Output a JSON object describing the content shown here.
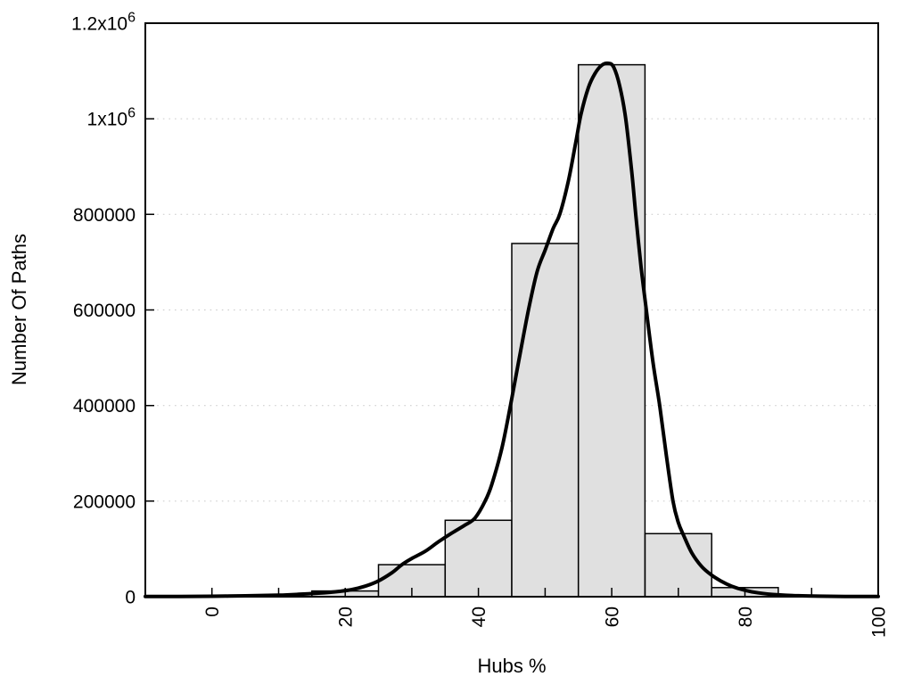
{
  "chart_data": {
    "type": "bar",
    "subtype": "histogram-with-fit-curve",
    "title": "",
    "xlabel": "Hubs %",
    "ylabel": "Number Of Paths",
    "xlim": [
      -10,
      100
    ],
    "ylim": [
      0,
      1200000
    ],
    "x_tick_step": 10,
    "x_tick_labels": [
      {
        "value": 0,
        "label": "0"
      },
      {
        "value": 20,
        "label": "20"
      },
      {
        "value": 40,
        "label": "40"
      },
      {
        "value": 60,
        "label": "60"
      },
      {
        "value": 80,
        "label": "80"
      },
      {
        "value": 100,
        "label": "100"
      }
    ],
    "y_ticks": [
      {
        "value": 0,
        "label": "0"
      },
      {
        "value": 200000,
        "label": "200000"
      },
      {
        "value": 400000,
        "label": "400000"
      },
      {
        "value": 600000,
        "label": "600000"
      },
      {
        "value": 800000,
        "label": "800000"
      },
      {
        "value": 1000000,
        "label": "1x10^6"
      },
      {
        "value": 1200000,
        "label": "1.2x10^6"
      }
    ],
    "grid": {
      "horizontal": true,
      "vertical": false,
      "style": "dotted",
      "color": "#d0d0d0"
    },
    "legend": "none",
    "bars": {
      "bin_width": 10,
      "centers": [
        20,
        30,
        40,
        50,
        60,
        70,
        80
      ],
      "values": [
        12000,
        67000,
        160000,
        739000,
        1113000,
        132000,
        19000
      ],
      "fill": "#e0e0e0",
      "border": "#000000"
    },
    "fit_curve": {
      "name": "smooth-fit-line",
      "color": "#000000",
      "width": 4,
      "points": [
        [
          -10,
          400
        ],
        [
          -5,
          600
        ],
        [
          0,
          1000
        ],
        [
          5,
          1800
        ],
        [
          10,
          3200
        ],
        [
          13,
          5000
        ],
        [
          16,
          7500
        ],
        [
          19,
          11000
        ],
        [
          21,
          15000
        ],
        [
          23,
          22000
        ],
        [
          25,
          33000
        ],
        [
          27,
          50000
        ],
        [
          28.5,
          67000
        ],
        [
          30,
          80000
        ],
        [
          32,
          95000
        ],
        [
          34,
          115000
        ],
        [
          36,
          133000
        ],
        [
          38,
          150000
        ],
        [
          39.5,
          165000
        ],
        [
          41,
          200000
        ],
        [
          42,
          235000
        ],
        [
          43.5,
          310000
        ],
        [
          44.8,
          400000
        ],
        [
          46,
          490000
        ],
        [
          47.5,
          600000
        ],
        [
          48.8,
          680000
        ],
        [
          50,
          725000
        ],
        [
          51.2,
          770000
        ],
        [
          52.2,
          800000
        ],
        [
          53.5,
          870000
        ],
        [
          54.6,
          950000
        ],
        [
          55.4,
          1010000
        ],
        [
          56.5,
          1065000
        ],
        [
          57.5,
          1095000
        ],
        [
          58.5,
          1112000
        ],
        [
          59.5,
          1116000
        ],
        [
          60.3,
          1108000
        ],
        [
          61.2,
          1068000
        ],
        [
          62.1,
          1000000
        ],
        [
          63,
          890000
        ],
        [
          63.6,
          800000
        ],
        [
          64.4,
          690000
        ],
        [
          65.2,
          600000
        ],
        [
          66.2,
          490000
        ],
        [
          67.2,
          400000
        ],
        [
          68.2,
          295000
        ],
        [
          69.2,
          200000
        ],
        [
          70,
          155000
        ],
        [
          70.8,
          128000
        ],
        [
          72,
          92000
        ],
        [
          73.5,
          63000
        ],
        [
          75,
          45000
        ],
        [
          76.5,
          32000
        ],
        [
          78,
          22000
        ],
        [
          80,
          13500
        ],
        [
          82,
          8000
        ],
        [
          85,
          4000
        ],
        [
          88,
          2000
        ],
        [
          91,
          1100
        ],
        [
          95,
          600
        ],
        [
          100,
          350
        ]
      ]
    },
    "colors": {
      "background": "#ffffff",
      "axis_border": "#000000",
      "text": "#000000"
    }
  }
}
